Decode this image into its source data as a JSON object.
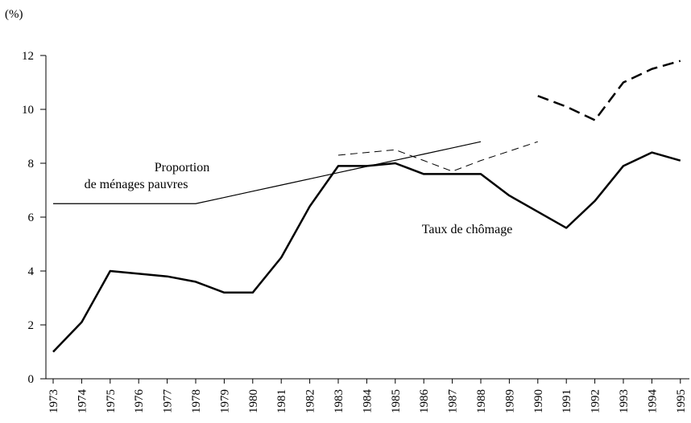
{
  "chart_data": {
    "type": "line",
    "y_unit_label": "(%)",
    "categories": [
      "1973",
      "1974",
      "1975",
      "1976",
      "1977",
      "1978",
      "1979",
      "1980",
      "1981",
      "1982",
      "1983",
      "1984",
      "1985",
      "1986",
      "1987",
      "1988",
      "1989",
      "1990",
      "1991",
      "1992",
      "1993",
      "1994",
      "1995"
    ],
    "series": [
      {
        "color": "#000000",
        "line_width": 2.5,
        "dashed": false,
        "values": [
          1.0,
          2.1,
          4.0,
          3.9,
          3.8,
          3.6,
          3.2,
          3.2,
          4.5,
          6.4,
          7.9,
          7.9,
          8.0,
          7.6,
          7.6,
          7.6,
          6.8,
          6.2,
          5.6,
          6.6,
          7.9,
          8.4,
          8.1
        ]
      },
      {
        "color": "#000000",
        "line_width": 1.2,
        "dashed": false,
        "values": [
          6.5,
          6.5,
          6.5,
          6.5,
          6.5,
          6.5,
          6.73,
          6.96,
          7.19,
          7.42,
          7.65,
          7.88,
          8.11,
          8.34,
          8.57,
          8.8,
          null,
          null,
          null,
          null,
          null,
          null,
          null
        ]
      },
      {
        "color": "#000000",
        "line_width": 1,
        "dashed": true,
        "values": [
          null,
          null,
          null,
          null,
          null,
          null,
          null,
          null,
          null,
          null,
          8.3,
          8.4,
          8.5,
          8.1,
          7.7,
          8.1,
          8.45,
          8.8,
          null,
          null,
          null,
          null,
          null
        ]
      },
      {
        "color": "#000000",
        "line_width": 2.5,
        "dashed": true,
        "values": [
          null,
          null,
          null,
          null,
          null,
          null,
          null,
          null,
          null,
          null,
          null,
          null,
          null,
          null,
          null,
          null,
          null,
          10.5,
          10.1,
          9.6,
          11.0,
          11.5,
          11.8
        ]
      }
    ],
    "annotations": [
      "Proportion",
      "de ménages pauvres",
      "Taux de chômage"
    ],
    "ylim": [
      0,
      12
    ],
    "yticks": [
      0,
      2,
      4,
      6,
      8,
      10,
      12
    ],
    "grid": false
  }
}
